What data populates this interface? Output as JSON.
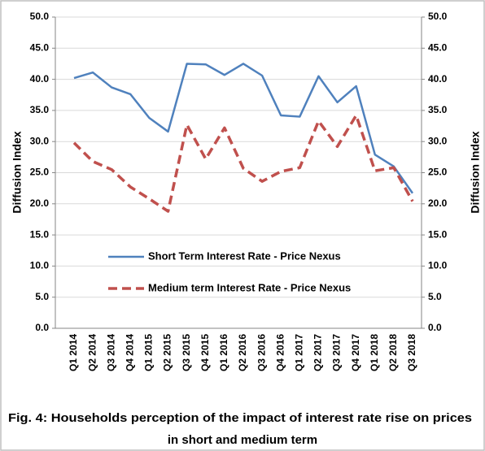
{
  "chart_data": {
    "type": "line",
    "caption": [
      "Fig. 4:  Households  perception of the impact of interest rate rise on prices",
      "in short and medium term"
    ],
    "y_label": "Diffusion Index",
    "y2_label": "Diffusion Index",
    "categories": [
      "Q1 2014",
      "Q2 2014",
      "Q3 2014",
      "Q4 2014",
      "Q1 2015",
      "Q2 2015",
      "Q3 2015",
      "Q4 2015",
      "Q1 2016",
      "Q2 2016",
      "Q3 2016",
      "Q4 2016",
      "Q1 2017",
      "Q2 2017",
      "Q3 2017",
      "Q4 2017",
      "Q1 2018",
      "Q2 2018",
      "Q3 2018"
    ],
    "series": [
      {
        "name": "Short Term Interest Rate - Price Nexus",
        "color": "#4f81bd",
        "dashed": false,
        "values": [
          40.2,
          41.1,
          38.7,
          37.6,
          33.8,
          31.6,
          42.5,
          42.4,
          40.7,
          42.5,
          40.6,
          34.2,
          34.0,
          40.5,
          36.3,
          38.9,
          27.9,
          26.0,
          21.7
        ]
      },
      {
        "name": "Medium  term Interest Rate - Price Nexus",
        "color": "#c0504d",
        "dashed": true,
        "values": [
          29.8,
          26.8,
          25.5,
          22.7,
          20.8,
          18.8,
          32.7,
          27.2,
          32.2,
          25.7,
          23.6,
          25.2,
          25.8,
          33.3,
          29.2,
          34.2,
          25.3,
          25.8,
          20.4
        ]
      }
    ],
    "ylim": [
      0,
      50
    ],
    "yticks": [
      {
        "value": 0,
        "label": "0.0"
      },
      {
        "value": 5,
        "label": "5.0"
      },
      {
        "value": 10,
        "label": "10.0"
      },
      {
        "value": 15,
        "label": "15.0"
      },
      {
        "value": 20,
        "label": "20.0"
      },
      {
        "value": 25,
        "label": "25.0"
      },
      {
        "value": 30,
        "label": "30.0"
      },
      {
        "value": 35,
        "label": "35.0"
      },
      {
        "value": 40,
        "label": "40.0"
      },
      {
        "value": 45,
        "label": "45.0"
      },
      {
        "value": 50,
        "label": "50.0"
      }
    ],
    "y2lim": [
      0,
      50
    ],
    "y2ticks": [
      {
        "value": 0,
        "label": "0.0"
      },
      {
        "value": 5,
        "label": "5.0"
      },
      {
        "value": 10,
        "label": "10.0"
      },
      {
        "value": 15,
        "label": "15.0"
      },
      {
        "value": 20,
        "label": "20.0"
      },
      {
        "value": 25,
        "label": "25.0"
      },
      {
        "value": 30,
        "label": "30.0"
      },
      {
        "value": 35,
        "label": "35.0"
      },
      {
        "value": 40,
        "label": "40.0"
      },
      {
        "value": 45,
        "label": "45.0"
      },
      {
        "value": 50,
        "label": "50.0"
      }
    ],
    "grid": true
  }
}
